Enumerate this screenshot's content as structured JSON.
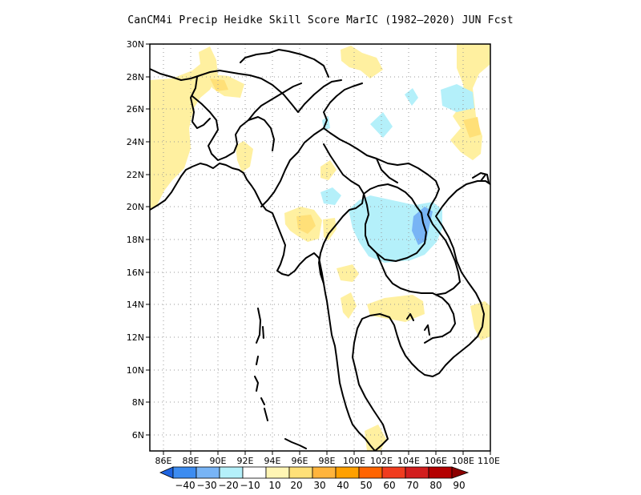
{
  "title": "CanCM4i Precip Heidke Skill Score MarIC (1982–2020) JUN Fcst",
  "map": {
    "lon_range": [
      85,
      110
    ],
    "lat_range": [
      5,
      30
    ],
    "x_ticks": [
      "86E",
      "88E",
      "90E",
      "92E",
      "94E",
      "96E",
      "98E",
      "100E",
      "102E",
      "104E",
      "106E",
      "108E",
      "110E"
    ],
    "y_ticks": [
      "30N",
      "28N",
      "26N",
      "24N",
      "22N",
      "20N",
      "18N",
      "16N",
      "14N",
      "12N",
      "10N",
      "8N",
      "6N"
    ],
    "grid": "dotted"
  },
  "colorbar": {
    "labels": [
      "−40",
      "−30",
      "−20",
      "−10",
      "10",
      "20",
      "30",
      "40",
      "50",
      "60",
      "70",
      "80",
      "90"
    ],
    "colors": [
      "#1e64e0",
      "#3c8cf0",
      "#78b4f5",
      "#b4f0fa",
      "#ffffff",
      "#fff5b4",
      "#ffe078",
      "#ffb43c",
      "#ffa000",
      "#ff6400",
      "#f03c1e",
      "#d21e1e",
      "#b40000",
      "#8c0000"
    ]
  },
  "style": {
    "yellow": "#fff0a0",
    "orange": "#ffe078",
    "cyan": "#b4f0fa",
    "blue": "#78b4f5"
  }
}
